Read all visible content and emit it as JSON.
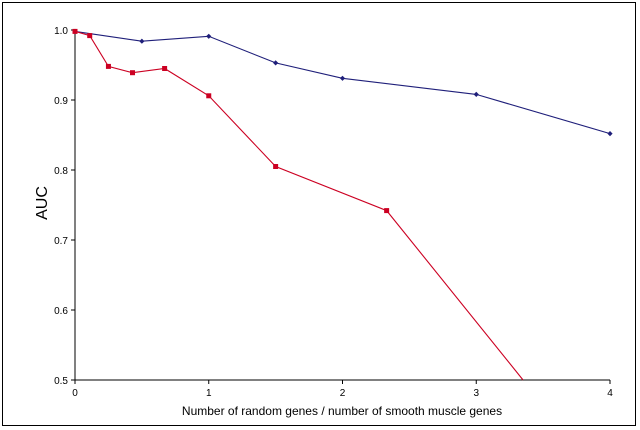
{
  "chart_data": {
    "type": "line",
    "xlabel": "Number of random genes / number of smooth muscle genes",
    "ylabel": "AUC",
    "xlim": [
      0,
      4
    ],
    "ylim": [
      0.5,
      1.0
    ],
    "x_ticks": [
      "0",
      "1",
      "2",
      "3",
      "4"
    ],
    "y_ticks": [
      "0.5",
      "0.6",
      "0.7",
      "0.8",
      "0.9",
      "1.0"
    ],
    "grid": false,
    "series": [
      {
        "color": "#1f1f7a",
        "marker": "diamond",
        "x": [
          0,
          0.5,
          1,
          1.5,
          2,
          3,
          4
        ],
        "y": [
          0.998,
          0.984,
          0.991,
          0.953,
          0.931,
          0.908,
          0.852
        ]
      },
      {
        "color": "#cc0022",
        "marker": "square",
        "x": [
          0,
          0.11,
          0.25,
          0.43,
          0.67,
          1,
          1.5,
          2.33,
          3.35
        ],
        "y": [
          0.998,
          0.992,
          0.948,
          0.939,
          0.945,
          0.906,
          0.805,
          0.742,
          0.5
        ]
      }
    ]
  }
}
